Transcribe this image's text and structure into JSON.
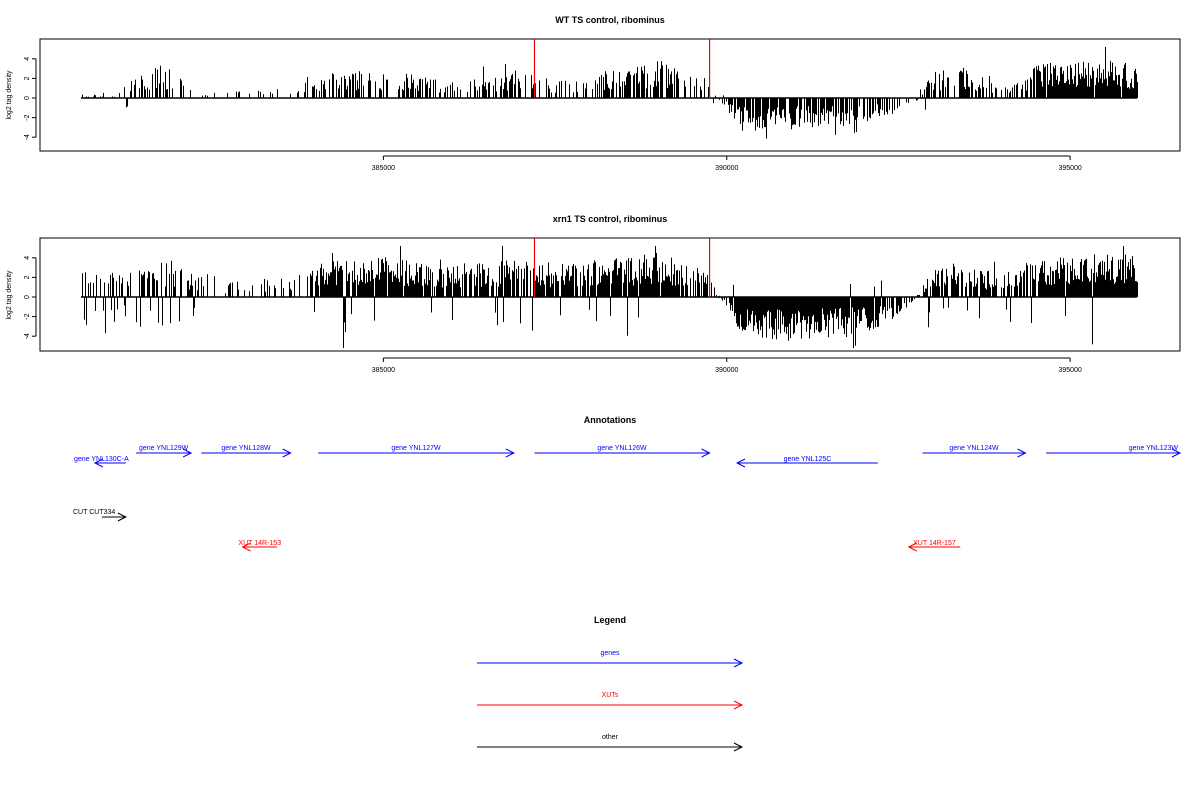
{
  "chart_data": [
    {
      "type": "bar",
      "title": "WT TS control, ribominus",
      "xlabel": "",
      "ylabel": "log2 tag density",
      "xlim": [
        380000,
        396600
      ],
      "ylim": [
        -5,
        5.5
      ],
      "x_ticks": [
        385000,
        390000,
        395000
      ],
      "y_ticks": [
        4,
        2,
        0,
        -2,
        -4
      ],
      "profile": {
        "x": [
          381100,
          381300,
          381500,
          381800,
          382200,
          382600,
          383200,
          383700,
          384100,
          384500,
          384900,
          385300,
          385800,
          386300,
          386800,
          387200,
          387700,
          388200,
          388700,
          389200,
          389700,
          390200,
          390700,
          391200,
          391700,
          392200,
          392600,
          393000,
          393500,
          394000,
          394600,
          395100,
          395600,
          396000
        ],
        "y": [
          0.3,
          1.2,
          2.3,
          2.6,
          0.8,
          0.5,
          0.6,
          0.8,
          2.0,
          2.2,
          2.0,
          2.0,
          1.4,
          1.5,
          2.0,
          1.8,
          1.3,
          2.0,
          2.5,
          2.8,
          1.2,
          -2.5,
          -2.6,
          -2.3,
          -2.2,
          -1.8,
          -0.8,
          2.2,
          2.4,
          1.0,
          2.8,
          2.9,
          3.0,
          2.6
        ],
        "density": [
          0.3,
          0.35,
          0.45,
          0.45,
          0.15,
          0.15,
          0.15,
          0.2,
          0.55,
          0.6,
          0.55,
          0.55,
          0.4,
          0.35,
          0.55,
          0.5,
          0.3,
          0.55,
          0.65,
          0.7,
          0.3,
          0.8,
          0.85,
          0.8,
          0.75,
          0.6,
          0.2,
          0.6,
          0.65,
          0.3,
          0.9,
          0.95,
          0.95,
          0.9
        ],
        "neg_prob": [
          0.05,
          0.15,
          0.0,
          0.0,
          0.0,
          0.0,
          0.0,
          0.0,
          0.0,
          0.0,
          0.0,
          0.0,
          0.0,
          0.0,
          0.05,
          0.0,
          0.05,
          0.0,
          0.0,
          0.0,
          0.0,
          1.0,
          1.0,
          1.0,
          1.0,
          1.0,
          0.8,
          0.0,
          0.0,
          0.0,
          0.0,
          0.0,
          0.0,
          0.0
        ],
        "seed": 17
      },
      "markers": {
        "x": [
          387200,
          389750
        ],
        "height": 5.0,
        "color": "#ff0000"
      }
    },
    {
      "type": "bar",
      "title": "xrn1 TS control, ribominus",
      "xlabel": "",
      "ylabel": "log2 tag density",
      "xlim": [
        380000,
        396600
      ],
      "ylim": [
        -5.5,
        5.5
      ],
      "x_ticks": [
        385000,
        390000,
        395000
      ],
      "y_ticks": [
        4,
        2,
        0,
        -2,
        -4
      ],
      "profile": {
        "x": [
          381100,
          381300,
          381500,
          381800,
          382200,
          382600,
          383200,
          383700,
          384100,
          384500,
          384900,
          385300,
          385800,
          386300,
          386800,
          387200,
          387700,
          388200,
          388700,
          389200,
          389700,
          390200,
          390700,
          391200,
          391700,
          392200,
          392600,
          393000,
          393500,
          394000,
          394600,
          395100,
          395600,
          396000
        ],
        "y": [
          2.0,
          2.2,
          2.6,
          2.8,
          2.0,
          1.0,
          1.5,
          1.5,
          2.8,
          3.0,
          3.2,
          3.0,
          2.8,
          2.6,
          2.9,
          2.8,
          2.6,
          3.0,
          3.1,
          3.2,
          2.0,
          -3.0,
          -3.4,
          -3.3,
          -3.1,
          -2.6,
          -1.4,
          2.4,
          2.6,
          1.8,
          3.2,
          3.3,
          3.4,
          3.3
        ],
        "density": [
          0.55,
          0.6,
          0.7,
          0.7,
          0.45,
          0.2,
          0.3,
          0.3,
          0.9,
          0.95,
          0.95,
          0.95,
          0.85,
          0.8,
          0.9,
          0.9,
          0.8,
          0.95,
          0.95,
          0.95,
          0.5,
          1.0,
          1.0,
          1.0,
          1.0,
          1.0,
          0.4,
          0.85,
          0.85,
          0.5,
          1.0,
          1.0,
          1.0,
          1.0
        ],
        "neg_prob": [
          0.3,
          0.25,
          0.15,
          0.15,
          0.1,
          0.05,
          0.05,
          0.05,
          0.05,
          0.05,
          0.05,
          0.05,
          0.05,
          0.05,
          0.05,
          0.05,
          0.05,
          0.05,
          0.05,
          0.05,
          0.1,
          1.0,
          1.0,
          1.0,
          1.0,
          1.0,
          0.8,
          0.1,
          0.1,
          0.15,
          0.05,
          0.05,
          0.05,
          0.05
        ],
        "seed": 29
      },
      "markers": {
        "x": [
          387200,
          389750
        ],
        "height": 5.0,
        "color": "#ff0000"
      }
    }
  ],
  "annotations": {
    "title": "Annotations",
    "items": [
      {
        "label": "gene YNL130C-A",
        "start": 381250,
        "end": 380800,
        "color": "#0000ff"
      },
      {
        "label": "gene YNL129W",
        "start": 381400,
        "end": 382200,
        "color": "#0000ff"
      },
      {
        "label": "gene YNL128W",
        "start": 382350,
        "end": 383650,
        "color": "#0000ff"
      },
      {
        "label": "gene YNL127W",
        "start": 384050,
        "end": 386900,
        "color": "#0000ff"
      },
      {
        "label": "gene YNL126W",
        "start": 387200,
        "end": 389750,
        "color": "#0000ff"
      },
      {
        "label": "gene YNL125C",
        "start": 392200,
        "end": 390150,
        "color": "#0000ff"
      },
      {
        "label": "gene YNL124W",
        "start": 392850,
        "end": 394350,
        "color": "#0000ff"
      },
      {
        "label": "gene YNL123W",
        "start": 394650,
        "end": 396600,
        "color": "#0000ff"
      },
      {
        "label": "CUT CUT334",
        "start": 380900,
        "end": 381250,
        "color": "#000000"
      },
      {
        "label": "XUT 14R-153",
        "start": 383450,
        "end": 382950,
        "color": "#ff0000"
      },
      {
        "label": "XUT 14R-157",
        "start": 393400,
        "end": 392650,
        "color": "#ff0000"
      }
    ]
  },
  "legend": {
    "title": "Legend",
    "items": [
      {
        "label": "genes",
        "color": "#0000ff"
      },
      {
        "label": "XUTs",
        "color": "#ff0000"
      },
      {
        "label": "other",
        "color": "#000000"
      }
    ]
  }
}
